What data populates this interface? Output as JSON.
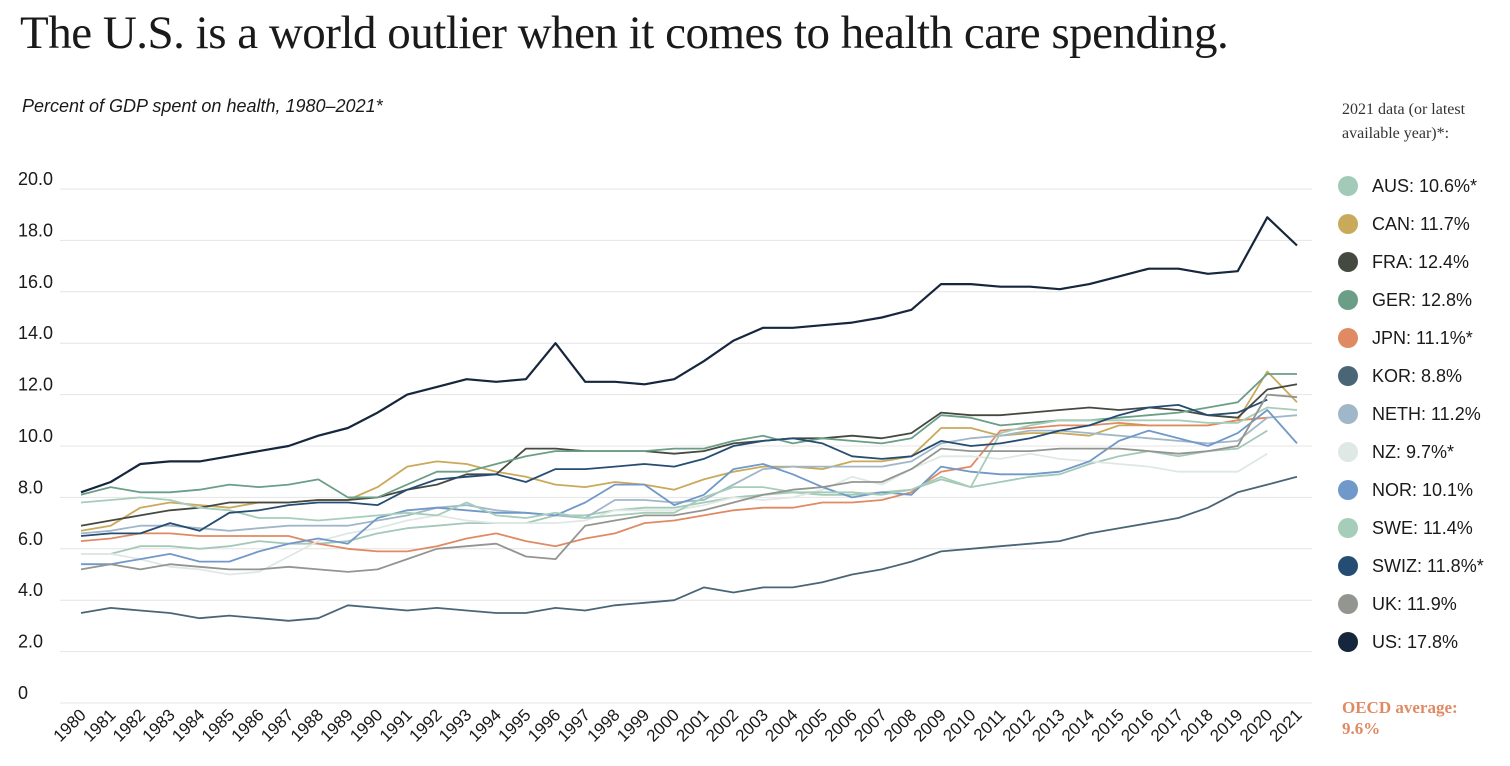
{
  "title": "The U.S. is a world outlier when it comes to health care spending.",
  "subtitle": "Percent of GDP spent on health, 1980–2021*",
  "legend_header": "2021 data (or latest available year)*:",
  "oecd_note": {
    "line1": "OECD average:",
    "line2": "9.6%",
    "color": "#e08a63"
  },
  "chart_data": {
    "type": "line",
    "x": [
      1980,
      1981,
      1982,
      1983,
      1984,
      1985,
      1986,
      1987,
      1988,
      1989,
      1990,
      1991,
      1992,
      1993,
      1994,
      1995,
      1996,
      1997,
      1998,
      1999,
      2000,
      2001,
      2002,
      2003,
      2004,
      2005,
      2006,
      2007,
      2008,
      2009,
      2010,
      2011,
      2012,
      2013,
      2014,
      2015,
      2016,
      2017,
      2018,
      2019,
      2020,
      2021
    ],
    "xlim": [
      1980,
      2021
    ],
    "ylim": [
      0,
      20
    ],
    "yticks": [
      0,
      2.0,
      4.0,
      6.0,
      8.0,
      10.0,
      12.0,
      14.0,
      16.0,
      18.0,
      20.0
    ],
    "ytick_labels": [
      "0",
      "2.0",
      "4.0",
      "6.0",
      "8.0",
      "10.0",
      "12.0",
      "14.0",
      "16.0",
      "18.0",
      "20.0"
    ],
    "grid": true,
    "legend_position": "right",
    "series": [
      {
        "name": "AUS",
        "label": "AUS: 10.6%*",
        "color": "#a3c9b8",
        "values": [
          5.8,
          5.8,
          6.1,
          6.1,
          6.0,
          6.1,
          6.3,
          6.2,
          6.2,
          6.3,
          6.6,
          6.8,
          6.9,
          7.0,
          7.0,
          7.0,
          7.3,
          7.3,
          7.5,
          7.6,
          7.6,
          7.8,
          8.0,
          8.1,
          8.2,
          8.1,
          8.1,
          8.2,
          8.3,
          8.7,
          8.4,
          8.6,
          8.8,
          8.9,
          9.3,
          9.6,
          9.8,
          9.6,
          9.8,
          9.9,
          10.6,
          null
        ]
      },
      {
        "name": "CAN",
        "label": "CAN: 11.7%",
        "color": "#c9a95a",
        "values": [
          6.7,
          6.9,
          7.6,
          7.8,
          7.7,
          7.6,
          7.8,
          7.8,
          7.9,
          7.9,
          8.4,
          9.2,
          9.4,
          9.3,
          9.0,
          8.8,
          8.5,
          8.4,
          8.6,
          8.5,
          8.3,
          8.7,
          9.0,
          9.2,
          9.2,
          9.1,
          9.4,
          9.4,
          9.6,
          10.7,
          10.7,
          10.4,
          10.5,
          10.5,
          10.4,
          10.8,
          10.8,
          10.8,
          10.8,
          11.0,
          12.9,
          11.7
        ]
      },
      {
        "name": "FRA",
        "label": "FRA: 12.4%",
        "color": "#454a41",
        "values": [
          6.9,
          7.1,
          7.3,
          7.5,
          7.6,
          7.8,
          7.8,
          7.8,
          7.9,
          7.9,
          8.0,
          8.3,
          8.5,
          8.9,
          8.9,
          9.9,
          9.9,
          9.8,
          9.8,
          9.8,
          9.7,
          9.8,
          10.1,
          10.2,
          10.3,
          10.3,
          10.4,
          10.3,
          10.5,
          11.3,
          11.2,
          11.2,
          11.3,
          11.4,
          11.5,
          11.4,
          11.5,
          11.4,
          11.2,
          11.1,
          12.2,
          12.4
        ]
      },
      {
        "name": "GER",
        "label": "GER: 12.8%",
        "color": "#6b9e87",
        "values": [
          8.1,
          8.4,
          8.2,
          8.2,
          8.3,
          8.5,
          8.4,
          8.5,
          8.7,
          8.0,
          8.0,
          8.5,
          9.0,
          9.0,
          9.3,
          9.6,
          9.8,
          9.8,
          9.8,
          9.8,
          9.9,
          9.9,
          10.2,
          10.4,
          10.1,
          10.3,
          10.2,
          10.1,
          10.3,
          11.2,
          11.1,
          10.8,
          10.9,
          11.0,
          11.0,
          11.1,
          11.2,
          11.3,
          11.5,
          11.7,
          12.8,
          12.8
        ]
      },
      {
        "name": "JPN",
        "label": "JPN: 11.1%*",
        "color": "#e08a63",
        "values": [
          6.3,
          6.4,
          6.6,
          6.6,
          6.5,
          6.5,
          6.5,
          6.5,
          6.2,
          6.0,
          5.9,
          5.9,
          6.1,
          6.4,
          6.6,
          6.3,
          6.1,
          6.4,
          6.6,
          7.0,
          7.1,
          7.3,
          7.5,
          7.6,
          7.6,
          7.8,
          7.8,
          7.9,
          8.2,
          9.0,
          9.2,
          10.6,
          10.7,
          10.8,
          10.8,
          10.9,
          10.8,
          10.8,
          10.8,
          11.0,
          11.1,
          null
        ]
      },
      {
        "name": "KOR",
        "label": "KOR: 8.8%",
        "color": "#4a6676",
        "values": [
          3.5,
          3.7,
          3.6,
          3.5,
          3.3,
          3.4,
          3.3,
          3.2,
          3.3,
          3.8,
          3.7,
          3.6,
          3.7,
          3.6,
          3.5,
          3.5,
          3.7,
          3.6,
          3.8,
          3.9,
          4.0,
          4.5,
          4.3,
          4.5,
          4.5,
          4.7,
          5.0,
          5.2,
          5.5,
          5.9,
          6.0,
          6.1,
          6.2,
          6.3,
          6.6,
          6.8,
          7.0,
          7.2,
          7.6,
          8.2,
          8.5,
          8.8
        ]
      },
      {
        "name": "NETH",
        "label": "NETH: 11.2%",
        "color": "#a0b7c9",
        "values": [
          6.6,
          6.7,
          6.9,
          6.9,
          6.8,
          6.7,
          6.8,
          6.9,
          6.9,
          6.9,
          7.1,
          7.3,
          7.6,
          7.7,
          7.5,
          7.4,
          7.3,
          7.2,
          7.9,
          7.9,
          7.8,
          7.9,
          8.5,
          9.1,
          9.2,
          9.2,
          9.2,
          9.2,
          9.4,
          10.1,
          10.3,
          10.4,
          10.6,
          10.6,
          10.5,
          10.4,
          10.3,
          10.2,
          10.1,
          10.2,
          11.1,
          11.2
        ]
      },
      {
        "name": "NZ",
        "label": "NZ: 9.7%*",
        "color": "#dfe8e4",
        "values": [
          5.8,
          5.8,
          5.6,
          5.3,
          5.2,
          5.0,
          5.1,
          5.7,
          6.3,
          6.6,
          6.8,
          7.1,
          7.3,
          7.1,
          7.0,
          7.0,
          7.0,
          7.1,
          7.5,
          7.5,
          7.5,
          7.7,
          8.0,
          7.9,
          8.0,
          8.3,
          8.8,
          8.5,
          9.1,
          9.6,
          9.6,
          9.5,
          9.7,
          9.5,
          9.4,
          9.3,
          9.2,
          9.0,
          9.0,
          9.0,
          9.7,
          null
        ]
      },
      {
        "name": "NOR",
        "label": "NOR: 10.1%",
        "color": "#7098c9",
        "values": [
          5.4,
          5.4,
          5.6,
          5.8,
          5.5,
          5.5,
          5.9,
          6.2,
          6.4,
          6.2,
          7.2,
          7.5,
          7.6,
          7.5,
          7.4,
          7.4,
          7.3,
          7.8,
          8.5,
          8.5,
          7.7,
          8.1,
          9.1,
          9.3,
          8.9,
          8.4,
          8.0,
          8.2,
          8.1,
          9.2,
          9.0,
          8.9,
          8.9,
          9.0,
          9.4,
          10.2,
          10.6,
          10.3,
          10.0,
          10.5,
          11.4,
          10.1
        ]
      },
      {
        "name": "SWE",
        "label": "SWE: 11.4%",
        "color": "#a6cdb9",
        "values": [
          7.8,
          7.9,
          8.0,
          7.9,
          7.6,
          7.5,
          7.2,
          7.2,
          7.1,
          7.2,
          7.3,
          7.4,
          7.3,
          7.8,
          7.3,
          7.2,
          7.4,
          7.2,
          7.3,
          7.4,
          7.4,
          8.0,
          8.4,
          8.4,
          8.2,
          8.2,
          8.2,
          8.1,
          8.3,
          8.8,
          8.4,
          10.5,
          10.8,
          11.0,
          11.0,
          11.0,
          11.0,
          11.0,
          10.9,
          10.9,
          11.5,
          11.4
        ]
      },
      {
        "name": "SWIZ",
        "label": "SWIZ: 11.8%*",
        "color": "#254d73",
        "values": [
          6.5,
          6.6,
          6.6,
          7.0,
          6.7,
          7.4,
          7.5,
          7.7,
          7.8,
          7.8,
          7.7,
          8.3,
          8.7,
          8.8,
          8.9,
          8.6,
          9.1,
          9.1,
          9.2,
          9.3,
          9.2,
          9.5,
          10.0,
          10.2,
          10.3,
          10.1,
          9.6,
          9.5,
          9.6,
          10.2,
          10.0,
          10.1,
          10.3,
          10.6,
          10.8,
          11.2,
          11.5,
          11.6,
          11.2,
          11.3,
          11.8,
          null
        ]
      },
      {
        "name": "UK",
        "label": "UK: 11.9%",
        "color": "#939690",
        "values": [
          5.2,
          5.4,
          5.2,
          5.4,
          5.3,
          5.2,
          5.2,
          5.3,
          5.2,
          5.1,
          5.2,
          5.6,
          6.0,
          6.1,
          6.2,
          5.7,
          5.6,
          6.9,
          7.1,
          7.3,
          7.3,
          7.5,
          7.8,
          8.1,
          8.3,
          8.4,
          8.6,
          8.6,
          9.1,
          9.9,
          9.8,
          9.8,
          9.8,
          9.9,
          9.9,
          9.9,
          9.8,
          9.7,
          9.8,
          10.0,
          12.0,
          11.9
        ]
      },
      {
        "name": "US",
        "label": "US: 17.8%",
        "color": "#16263c",
        "values": [
          8.2,
          8.6,
          9.3,
          9.4,
          9.4,
          9.6,
          9.8,
          10.0,
          10.4,
          10.7,
          11.3,
          12.0,
          12.3,
          12.6,
          12.5,
          12.6,
          14.0,
          12.5,
          12.5,
          12.4,
          12.6,
          13.3,
          14.1,
          14.6,
          14.6,
          14.7,
          14.8,
          15.0,
          15.3,
          16.3,
          16.3,
          16.2,
          16.2,
          16.1,
          16.3,
          16.6,
          16.9,
          16.9,
          16.7,
          16.8,
          18.9,
          17.8
        ]
      }
    ]
  }
}
